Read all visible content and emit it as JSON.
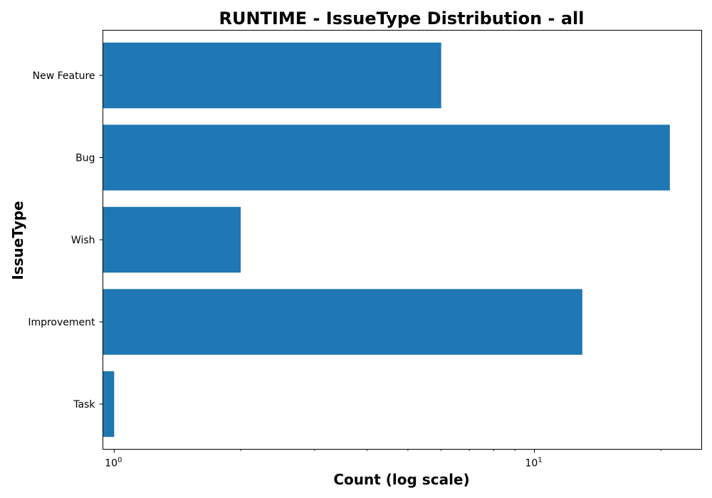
{
  "chart_data": {
    "type": "bar",
    "orientation": "horizontal",
    "title": "RUNTIME - IssueType Distribution - all",
    "xlabel": "Count (log scale)",
    "ylabel": "IssueType",
    "x_scale": "log",
    "xlim": [
      0.94,
      25
    ],
    "categories": [
      "New Feature",
      "Bug",
      "Wish",
      "Improvement",
      "Task"
    ],
    "values": [
      6,
      21,
      2,
      13,
      1
    ],
    "x_major_ticks": [
      {
        "base": "10",
        "exponent": "0",
        "value": 1
      },
      {
        "base": "10",
        "exponent": "1",
        "value": 10
      }
    ],
    "x_minor_ticks": [
      2,
      3,
      4,
      5,
      6,
      7,
      8,
      9,
      20
    ],
    "bar_color": "#1f77b4",
    "grid": false
  }
}
